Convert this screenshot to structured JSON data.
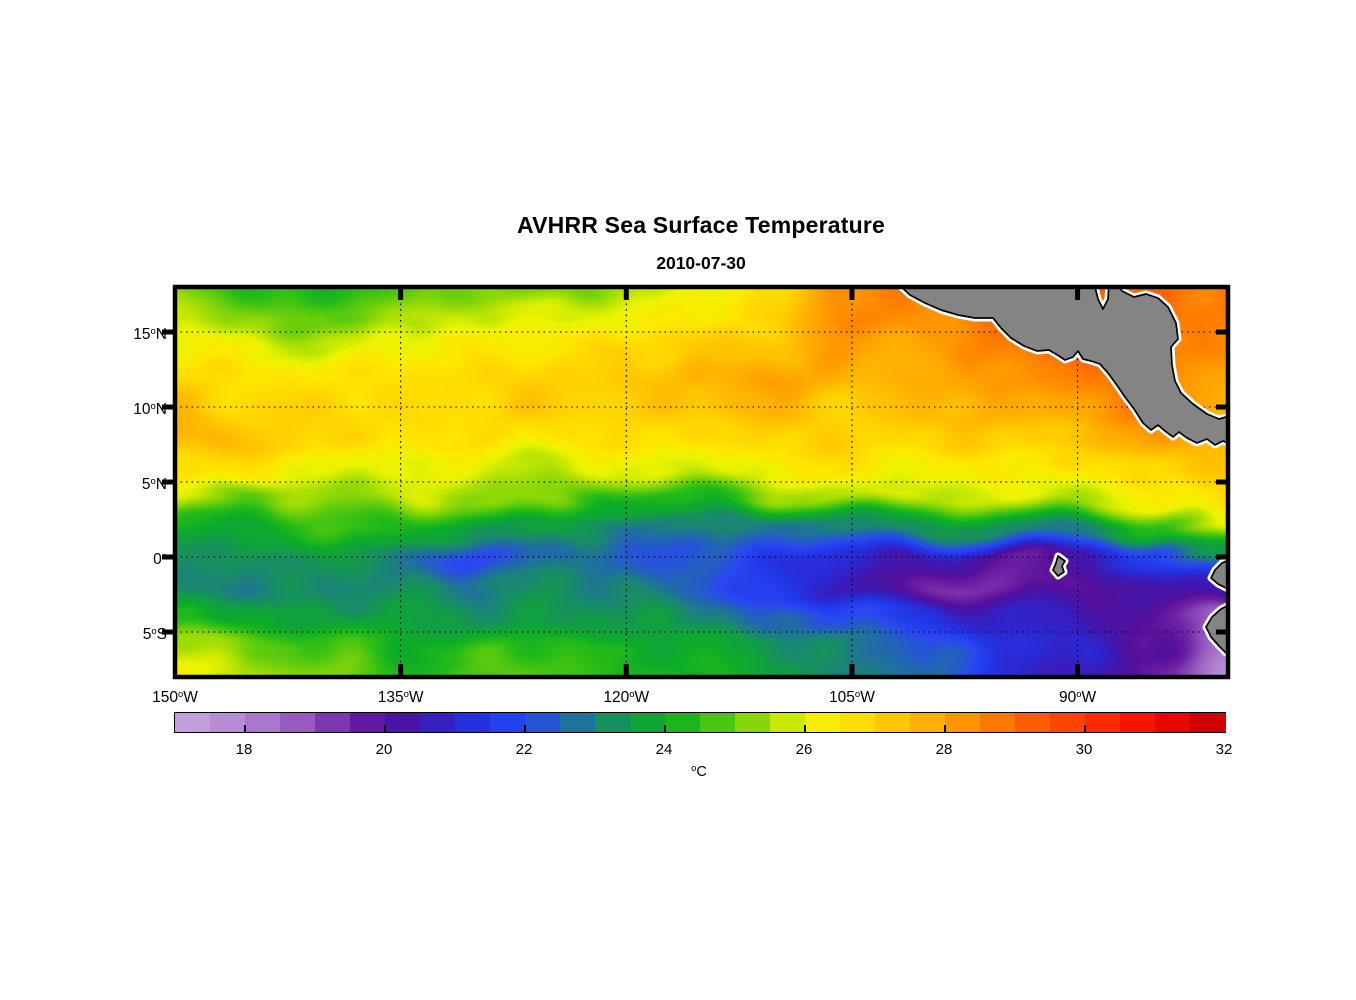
{
  "header": {
    "title": "AVHRR Sea Surface Temperature",
    "subtitle": "2010-07-30"
  },
  "chart_data": {
    "type": "heatmap",
    "title": "AVHRR Sea Surface Temperature",
    "subtitle": "2010-07-30",
    "axes": {
      "lon_min": -150,
      "lon_max": -80,
      "lat_min": -8,
      "lat_max": 18,
      "x_ticks": [
        {
          "num": "150",
          "deg": "o",
          "hemi": "W",
          "lon": -150
        },
        {
          "num": "135",
          "deg": "o",
          "hemi": "W",
          "lon": -135
        },
        {
          "num": "120",
          "deg": "o",
          "hemi": "W",
          "lon": -120
        },
        {
          "num": "105",
          "deg": "o",
          "hemi": "W",
          "lon": -105
        },
        {
          "num": "90",
          "deg": "o",
          "hemi": "W",
          "lon": -90
        }
      ],
      "y_ticks": [
        {
          "num": "15",
          "deg": "o",
          "hemi": "N",
          "lat": 15
        },
        {
          "num": "10",
          "deg": "o",
          "hemi": "N",
          "lat": 10
        },
        {
          "num": "5",
          "deg": "o",
          "hemi": "N",
          "lat": 5
        },
        {
          "num": "0",
          "deg": "o",
          "hemi": "",
          "lat": 0
        },
        {
          "num": "5",
          "deg": "o",
          "hemi": "S",
          "lat": -5
        }
      ],
      "gridline_lons": [
        -135,
        -120,
        -105,
        -90
      ],
      "gridline_lats": [
        15,
        10,
        5,
        0,
        -5
      ],
      "grid_on": true
    },
    "colorbar": {
      "min": 17,
      "max": 32,
      "blocks": 30,
      "tick_values": [
        18,
        20,
        22,
        24,
        26,
        28,
        30,
        32
      ],
      "inner_tick_values": [
        18,
        20,
        22,
        24,
        26,
        28,
        30
      ],
      "unit_deg": "o",
      "unit": "C",
      "orientation": "horizontal"
    },
    "colormap_stops": [
      [
        17.0,
        "#C7A7DF"
      ],
      [
        17.5,
        "#BD96D9"
      ],
      [
        18.0,
        "#B083D0"
      ],
      [
        18.5,
        "#A26CC6"
      ],
      [
        19.0,
        "#8C4BB8"
      ],
      [
        19.5,
        "#6F21A4"
      ],
      [
        20.0,
        "#55109C"
      ],
      [
        20.5,
        "#3F18B2"
      ],
      [
        21.0,
        "#2C28D2"
      ],
      [
        21.5,
        "#2139EA"
      ],
      [
        22.0,
        "#2A48F2"
      ],
      [
        22.5,
        "#2361BC"
      ],
      [
        23.0,
        "#1B8478"
      ],
      [
        23.5,
        "#129E44"
      ],
      [
        24.0,
        "#0CAD28"
      ],
      [
        24.5,
        "#2CBE16"
      ],
      [
        25.0,
        "#69CE0C"
      ],
      [
        25.5,
        "#A8DF05"
      ],
      [
        26.0,
        "#EBF400"
      ],
      [
        26.5,
        "#FFE800"
      ],
      [
        27.0,
        "#FFD300"
      ],
      [
        27.5,
        "#FFBC00"
      ],
      [
        28.0,
        "#FFA300"
      ],
      [
        28.5,
        "#FF8800"
      ],
      [
        29.0,
        "#FF6B00"
      ],
      [
        29.5,
        "#FF5000"
      ],
      [
        30.0,
        "#FF3600"
      ],
      [
        30.5,
        "#FF1D00"
      ],
      [
        31.0,
        "#F40C00"
      ],
      [
        31.5,
        "#DE0400"
      ],
      [
        32.0,
        "#C30000"
      ]
    ],
    "grid": {
      "lons": [
        -150,
        -145,
        -140,
        -135,
        -130,
        -125,
        -120,
        -115,
        -110,
        -105,
        -100,
        -95,
        -90,
        -85,
        -80
      ],
      "lats": [
        18,
        16,
        14,
        12,
        10,
        8,
        6,
        4,
        2,
        0,
        -2,
        -4,
        -6,
        -8
      ],
      "sst_c": [
        [
          25.2,
          24.6,
          24.1,
          24.8,
          25.3,
          24.8,
          25.6,
          25.9,
          26.5,
          28.6,
          28.4,
          28.9,
          29.2,
          28.9,
          28.8
        ],
        [
          25.6,
          25.3,
          25.0,
          25.4,
          25.8,
          25.8,
          26.1,
          26.4,
          27.0,
          28.5,
          28.3,
          28.9,
          29.2,
          28.8,
          28.8
        ],
        [
          26.2,
          26.0,
          25.8,
          26.0,
          26.4,
          26.6,
          26.9,
          27.2,
          27.6,
          27.9,
          28.1,
          28.7,
          29.1,
          28.5,
          28.3
        ],
        [
          26.8,
          26.6,
          26.5,
          26.7,
          26.9,
          27.0,
          27.3,
          27.6,
          28.0,
          27.7,
          27.8,
          28.2,
          28.7,
          28.3,
          27.9
        ],
        [
          27.3,
          27.0,
          26.8,
          26.8,
          26.9,
          27.0,
          27.2,
          27.4,
          27.5,
          27.3,
          27.3,
          27.7,
          28.1,
          28.4,
          28.0
        ],
        [
          27.8,
          27.3,
          26.9,
          26.7,
          26.6,
          26.6,
          26.7,
          26.8,
          26.9,
          27.0,
          26.9,
          27.1,
          27.3,
          28.2,
          27.6
        ],
        [
          26.7,
          26.4,
          26.1,
          26.0,
          25.9,
          25.9,
          25.8,
          25.9,
          26.2,
          26.5,
          26.3,
          26.4,
          26.6,
          27.0,
          27.2
        ],
        [
          25.8,
          24.9,
          25.5,
          25.6,
          25.4,
          25.2,
          23.9,
          24.4,
          25.3,
          25.7,
          25.8,
          25.9,
          25.6,
          26.2,
          26.8
        ],
        [
          24.3,
          23.9,
          24.6,
          24.3,
          23.2,
          23.5,
          22.9,
          23.1,
          22.7,
          23.3,
          23.1,
          23.2,
          22.9,
          24.3,
          26.3
        ],
        [
          23.4,
          23.2,
          23.3,
          23.0,
          21.8,
          22.7,
          22.5,
          22.2,
          21.4,
          21.0,
          20.4,
          19.9,
          20.2,
          21.8,
          23.6
        ],
        [
          23.1,
          22.9,
          23.2,
          23.1,
          22.9,
          23.2,
          23.0,
          22.4,
          21.6,
          20.6,
          19.6,
          19.4,
          20.0,
          20.3,
          20.8
        ],
        [
          24.1,
          23.8,
          23.6,
          23.4,
          23.3,
          23.5,
          23.4,
          23.2,
          22.6,
          21.9,
          21.4,
          20.6,
          20.6,
          20.0,
          18.4
        ],
        [
          25.6,
          25.0,
          24.6,
          24.2,
          24.6,
          24.4,
          24.2,
          23.8,
          23.4,
          22.8,
          22.3,
          21.4,
          20.8,
          20.0,
          17.9
        ],
        [
          26.3,
          25.6,
          25.0,
          24.4,
          24.8,
          24.6,
          24.4,
          24.0,
          23.6,
          23.0,
          22.5,
          21.2,
          20.6,
          19.4,
          17.7
        ]
      ]
    },
    "land": {
      "fill": "#848484",
      "outline": "#000000",
      "halo": "#FFFFFF",
      "polygons": [
        {
          "name": "central-america",
          "points": [
            [
              722,
              -4
            ],
            [
              735,
              8
            ],
            [
              750,
              16
            ],
            [
              766,
              23
            ],
            [
              783,
              28
            ],
            [
              800,
              31
            ],
            [
              818,
              31
            ],
            [
              826,
              41
            ],
            [
              836,
              51
            ],
            [
              849,
              59
            ],
            [
              862,
              64
            ],
            [
              874,
              63
            ],
            [
              884,
              69
            ],
            [
              890,
              73
            ],
            [
              898,
              70
            ],
            [
              903,
              64
            ],
            [
              908,
              72
            ],
            [
              916,
              74
            ],
            [
              925,
              77
            ],
            [
              933,
              86
            ],
            [
              941,
              97
            ],
            [
              950,
              110
            ],
            [
              959,
              122
            ],
            [
              968,
              136
            ],
            [
              976,
              143
            ],
            [
              983,
              138
            ],
            [
              990,
              144
            ],
            [
              998,
              150
            ],
            [
              1004,
              145
            ],
            [
              1012,
              151
            ],
            [
              1022,
              156
            ],
            [
              1032,
              152
            ],
            [
              1040,
              158
            ],
            [
              1048,
              154
            ],
            [
              1058,
              158
            ],
            [
              1058,
              128
            ],
            [
              1044,
              132
            ],
            [
              1032,
              127
            ],
            [
              1018,
              117
            ],
            [
              1006,
              106
            ],
            [
              1000,
              94
            ],
            [
              997,
              78
            ],
            [
              996,
              60
            ],
            [
              1003,
              52
            ],
            [
              1001,
              36
            ],
            [
              993,
              20
            ],
            [
              983,
              11
            ],
            [
              971,
              7
            ],
            [
              959,
              10
            ],
            [
              947,
              4
            ],
            [
              941,
              -4
            ],
            [
              934,
              -4
            ],
            [
              933,
              12
            ],
            [
              928,
              22
            ],
            [
              923,
              12
            ],
            [
              919,
              -4
            ]
          ]
        },
        {
          "name": "galapagos-islands",
          "points": [
            [
              883,
              269
            ],
            [
              890,
              274
            ],
            [
              887,
              279
            ],
            [
              889,
              285
            ],
            [
              883,
              289
            ],
            [
              878,
              283
            ],
            [
              881,
              276
            ]
          ]
        },
        {
          "name": "ecuador-coast",
          "points": [
            [
              1058,
              271
            ],
            [
              1047,
              276
            ],
            [
              1040,
              283
            ],
            [
              1036,
              291
            ],
            [
              1043,
              297
            ],
            [
              1051,
              301
            ],
            [
              1058,
              305
            ]
          ]
        },
        {
          "name": "peru-coast",
          "points": [
            [
              1058,
              316
            ],
            [
              1046,
              322
            ],
            [
              1037,
              330
            ],
            [
              1031,
              340
            ],
            [
              1036,
              350
            ],
            [
              1044,
              359
            ],
            [
              1051,
              366
            ],
            [
              1058,
              370
            ]
          ]
        }
      ]
    }
  }
}
